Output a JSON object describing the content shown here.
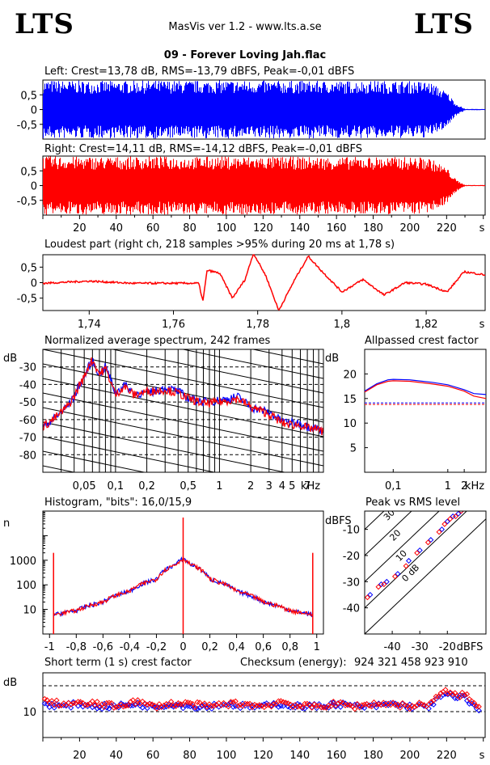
{
  "header": {
    "logo_left": "LTS",
    "logo_right": "LTS",
    "app_title": "MasVis ver 1.2 - www.lts.a.se",
    "file_title": "09 - Forever Loving Jah.flac"
  },
  "colors": {
    "left": "#0000ff",
    "right": "#ff0000",
    "axis": "#000000",
    "dashed": "#000000"
  },
  "chart_data": [
    {
      "id": "left",
      "type": "area",
      "title": "Left: Crest=13,78 dB, RMS=-13,79 dBFS, Peak=-0,01 dBFS",
      "ytick_labels": [
        "0,5",
        "0",
        "-0,5"
      ],
      "y_ticks": [
        0.5,
        0,
        -0.5
      ],
      "ylim": [
        -1,
        1
      ],
      "xlim": [
        0,
        241
      ],
      "x": [
        0,
        20,
        40,
        60,
        80,
        100,
        120,
        140,
        160,
        180,
        200,
        210,
        220,
        225,
        230,
        241
      ],
      "envelope": [
        1.0,
        0.98,
        0.97,
        0.99,
        0.98,
        0.99,
        0.98,
        0.98,
        0.97,
        0.98,
        0.97,
        0.95,
        0.6,
        0.2,
        0.02,
        0.02
      ]
    },
    {
      "id": "right",
      "type": "area",
      "title": "Right: Crest=14,11 dB, RMS=-14,12 dBFS, Peak=-0,01 dBFS",
      "ytick_labels": [
        "0,5",
        "0",
        "-0,5"
      ],
      "y_ticks": [
        0.5,
        0,
        -0.5
      ],
      "ylim": [
        -1,
        1
      ],
      "xlim": [
        0,
        241
      ],
      "x": [
        0,
        20,
        40,
        60,
        80,
        100,
        120,
        140,
        160,
        180,
        200,
        210,
        220,
        225,
        230,
        241
      ],
      "envelope": [
        1.0,
        0.98,
        0.98,
        0.99,
        0.98,
        0.99,
        0.98,
        0.98,
        0.97,
        0.98,
        0.97,
        0.96,
        0.6,
        0.2,
        0.02,
        0.02
      ],
      "xtick_labels": [
        "20",
        "40",
        "60",
        "80",
        "100",
        "120",
        "140",
        "160",
        "180",
        "200",
        "220",
        "s"
      ]
    },
    {
      "id": "loudest",
      "type": "line",
      "title": "Loudest part (right ch, 218 samples >95% during 20 ms at 1,78 s)",
      "ytick_labels": [
        "0,5",
        "0",
        "-0,5"
      ],
      "y_ticks": [
        0.5,
        0,
        -0.5
      ],
      "ylim": [
        -0.9,
        0.9
      ],
      "xlim": [
        1.729,
        1.834
      ],
      "xtick_labels": [
        "1,74",
        "1,76",
        "1,78",
        "1,8",
        "1,82",
        "s"
      ],
      "x_ticks": [
        1.74,
        1.76,
        1.78,
        1.8,
        1.82
      ],
      "x": [
        1.729,
        1.74,
        1.75,
        1.766,
        1.767,
        1.768,
        1.771,
        1.774,
        1.777,
        1.779,
        1.782,
        1.785,
        1.789,
        1.792,
        1.795,
        1.8,
        1.805,
        1.81,
        1.815,
        1.82,
        1.825,
        1.829,
        1.834
      ],
      "y": [
        -0.02,
        0.05,
        -0.02,
        -0.02,
        -0.6,
        0.4,
        0.3,
        -0.5,
        0.1,
        0.95,
        0.2,
        -0.9,
        0.15,
        0.85,
        0.4,
        -0.3,
        0.1,
        -0.4,
        0.0,
        -0.05,
        -0.3,
        0.35,
        0.25
      ]
    },
    {
      "id": "spectrum",
      "type": "line",
      "title": "Normalized average spectrum, 242 frames",
      "ylabel": "dB",
      "ytick_labels": [
        "-30",
        "-40",
        "-50",
        "-60",
        "-70",
        "-80"
      ],
      "y_ticks": [
        -30,
        -40,
        -50,
        -60,
        -70,
        -80
      ],
      "ylim": [
        -90,
        -20
      ],
      "xtick_labels": [
        "0,05",
        "0,1",
        "0,2",
        "0,5",
        "1",
        "2",
        "3",
        "4",
        "5",
        "7",
        "kHz"
      ],
      "x_ticks": [
        0.05,
        0.1,
        0.2,
        0.5,
        1,
        2,
        3,
        4,
        5,
        7
      ],
      "xlim": [
        0.02,
        10
      ],
      "x": [
        0.02,
        0.025,
        0.03,
        0.035,
        0.04,
        0.045,
        0.05,
        0.055,
        0.06,
        0.07,
        0.08,
        0.1,
        0.12,
        0.15,
        0.2,
        0.3,
        0.4,
        0.5,
        0.7,
        1,
        1.5,
        2,
        3,
        4,
        5,
        6,
        7,
        8,
        10
      ],
      "series": [
        {
          "color": "#0000ff",
          "y": [
            -64,
            -60,
            -56,
            -52,
            -47,
            -40,
            -36,
            -30,
            -27,
            -34,
            -30,
            -45,
            -40,
            -45,
            -45,
            -42,
            -44,
            -48,
            -50,
            -49,
            -47,
            -53,
            -56,
            -61,
            -62,
            -62,
            -64,
            -64,
            -67
          ]
        },
        {
          "color": "#ff0000",
          "y": [
            -64,
            -60,
            -56,
            -52,
            -47,
            -40,
            -36,
            -29,
            -26,
            -34,
            -31,
            -46,
            -41,
            -46,
            -44,
            -43,
            -45,
            -48,
            -51,
            -50,
            -48,
            -53,
            -57,
            -62,
            -63,
            -63,
            -65,
            -65,
            -67
          ]
        }
      ]
    },
    {
      "id": "allpassed",
      "type": "line",
      "title": "Allpassed crest factor",
      "ylabel": "dB",
      "ytick_labels": [
        "20",
        "15",
        "10",
        "5"
      ],
      "y_ticks": [
        20,
        15,
        10,
        5
      ],
      "ylim": [
        0,
        25
      ],
      "xtick_labels": [
        "0,1",
        "1",
        "2",
        "kHz"
      ],
      "x_ticks": [
        0.1,
        1,
        2
      ],
      "xlim": [
        0.03,
        5
      ],
      "x": [
        0.03,
        0.05,
        0.08,
        0.1,
        0.2,
        0.5,
        1,
        2,
        3,
        5
      ],
      "series": [
        {
          "color": "#0000ff",
          "y": [
            16.5,
            18,
            18.8,
            18.9,
            18.8,
            18.3,
            17.8,
            16.8,
            16,
            15.8
          ]
        },
        {
          "color": "#ff0000",
          "y": [
            16.3,
            17.8,
            18.5,
            18.6,
            18.5,
            18.0,
            17.5,
            16.5,
            15.5,
            15.0
          ]
        }
      ],
      "reference_lines": [
        {
          "color": "#0000ff",
          "y": 14.1
        },
        {
          "color": "#ff0000",
          "y": 13.8
        }
      ]
    },
    {
      "id": "histogram",
      "type": "line",
      "title": "Histogram, \"bits\": 16,0/15,9",
      "ylabel": "n",
      "ytick_labels": [
        "1000",
        "100",
        "10"
      ],
      "y_ticks": [
        1000,
        100,
        10
      ],
      "ylim": [
        1,
        100000
      ],
      "xtick_labels": [
        "-1",
        "-0,8",
        "-0,6",
        "-0,4",
        "-0,2",
        "0",
        "0,2",
        "0,4",
        "0,6",
        "0,8",
        "1"
      ],
      "x_ticks": [
        -1,
        -0.8,
        -0.6,
        -0.4,
        -0.2,
        0,
        0.2,
        0.4,
        0.6,
        0.8,
        1
      ],
      "xlim": [
        -1.05,
        1.05
      ],
      "x": [
        -0.97,
        -0.8,
        -0.6,
        -0.4,
        -0.2,
        -0.05,
        0,
        0.05,
        0.2,
        0.4,
        0.6,
        0.8,
        0.97
      ],
      "series": [
        {
          "color": "#0000ff",
          "y": [
            6,
            9,
            20,
            55,
            170,
            700,
            1200,
            700,
            170,
            55,
            20,
            9,
            6
          ]
        },
        {
          "color": "#ff0000",
          "y": [
            6,
            9,
            20,
            55,
            170,
            700,
            1200,
            700,
            170,
            55,
            20,
            9,
            6
          ]
        }
      ]
    },
    {
      "id": "peak_vs_rms",
      "type": "scatter",
      "title": "Peak vs RMS level",
      "ylabel": "dBFS",
      "xlabel": "dBFS",
      "ytick_labels": [
        "-10",
        "-20",
        "-30",
        "-40"
      ],
      "y_ticks": [
        -10,
        -20,
        -30,
        -40
      ],
      "xtick_labels": [
        "-40",
        "-30",
        "-20"
      ],
      "x_ticks": [
        -40,
        -30,
        -20
      ],
      "xlim": [
        -50,
        -6
      ],
      "ylim": [
        -50,
        -3
      ],
      "diagonal_labels": [
        "40",
        "30",
        "20",
        "10",
        "0 dB"
      ],
      "diagonals": [
        40,
        30,
        20,
        10,
        0
      ],
      "series": [
        {
          "color": "#0000ff",
          "x": [
            -48,
            -44,
            -42,
            -38,
            -34,
            -30,
            -26,
            -22,
            -20,
            -18,
            -16,
            -15
          ],
          "y": [
            -35,
            -31,
            -30,
            -27,
            -22,
            -18,
            -14,
            -10,
            -7,
            -5,
            -4,
            -3
          ]
        },
        {
          "color": "#ff0000",
          "x": [
            -49,
            -45,
            -43,
            -39,
            -35,
            -31,
            -27,
            -23,
            -21,
            -19,
            -17,
            -15
          ],
          "y": [
            -36,
            -32,
            -31,
            -28,
            -24,
            -19,
            -15,
            -11,
            -8,
            -6,
            -5,
            -3
          ]
        }
      ]
    },
    {
      "id": "short_term_crest",
      "type": "scatter",
      "title": "Short term (1 s) crest factor",
      "checksum_label": "Checksum (energy):",
      "checksum_value": "924 321 458 923 910",
      "ylabel": "dB",
      "ytick_labels": [
        "10"
      ],
      "y_ticks": [
        10
      ],
      "ylim": [
        0,
        25
      ],
      "dashed_lines": [
        10,
        20
      ],
      "xtick_labels": [
        "20",
        "40",
        "60",
        "80",
        "100",
        "120",
        "140",
        "160",
        "180",
        "200",
        "220",
        "s"
      ],
      "xlim": [
        0,
        241
      ],
      "x": [
        2,
        10,
        20,
        30,
        40,
        50,
        60,
        70,
        80,
        90,
        100,
        110,
        120,
        130,
        140,
        150,
        160,
        170,
        180,
        190,
        200,
        210,
        220,
        225,
        230,
        236
      ],
      "series": [
        {
          "color": "#0000ff",
          "y": [
            13,
            12,
            13,
            12,
            12,
            13,
            12,
            13,
            12,
            12,
            13,
            12,
            12,
            13,
            12,
            12,
            13,
            12,
            12,
            13,
            12,
            12,
            17,
            15,
            16,
            11
          ]
        },
        {
          "color": "#ff0000",
          "y": [
            14,
            13,
            13,
            13,
            12,
            14,
            12,
            13,
            13,
            12,
            13,
            13,
            12,
            14,
            12,
            12,
            13,
            12,
            13,
            13,
            12,
            13,
            18,
            16,
            17,
            12
          ]
        }
      ]
    }
  ]
}
